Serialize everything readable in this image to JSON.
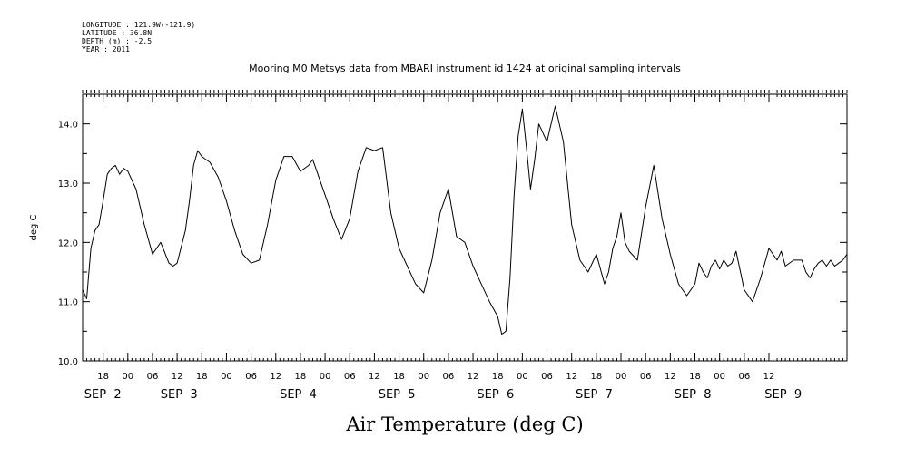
{
  "header": {
    "longitude": "LONGITUDE : 121.9W(-121.9)",
    "latitude": "LATITUDE : 36.8N",
    "depth": "DEPTH (m) : -2.5",
    "year": "YEAR : 2011"
  },
  "chart_data": {
    "type": "line",
    "title": "Mooring M0 Metsys data from MBARI instrument id 1424 at original sampling intervals",
    "xlabel": "Air Temperature (deg C)",
    "ylabel": "deg C",
    "ylim": [
      10.0,
      14.5
    ],
    "xlim_hours": [
      13,
      199
    ],
    "y_ticks": [
      "10.0",
      "11.0",
      "12.0",
      "13.0",
      "14.0"
    ],
    "x_ticks": [
      "18",
      "00",
      "06",
      "12",
      "18",
      "00",
      "06",
      "12",
      "18",
      "00",
      "06",
      "12",
      "18",
      "00",
      "06",
      "12",
      "18",
      "00",
      "06",
      "12",
      "18",
      "00",
      "06",
      "12",
      "18",
      "00",
      "06",
      "12"
    ],
    "date_labels": [
      "SEP  2",
      "SEP  3",
      "SEP  4",
      "SEP  5",
      "SEP  6",
      "SEP  7",
      "SEP  8",
      "SEP  9"
    ],
    "grid": false,
    "series": [
      {
        "name": "",
        "x_hours_since_sep1": [
          13,
          14,
          15,
          16,
          17,
          18,
          19,
          20,
          21,
          22,
          23,
          24,
          26,
          28,
          30,
          32,
          34,
          35,
          36,
          38,
          39,
          40,
          41,
          42,
          44,
          46,
          48,
          50,
          52,
          54,
          56,
          58,
          60,
          62,
          64,
          66,
          68,
          69,
          70,
          72,
          74,
          76,
          78,
          80,
          82,
          84,
          86,
          88,
          90,
          92,
          94,
          96,
          98,
          100,
          102,
          104,
          106,
          108,
          110,
          112,
          114,
          115,
          116,
          117,
          118,
          119,
          120,
          121,
          122,
          123,
          124,
          126,
          128,
          130,
          132,
          134,
          136,
          138,
          140,
          141,
          142,
          143,
          144,
          145,
          146,
          148,
          150,
          152,
          154,
          156,
          158,
          160,
          162,
          163,
          164,
          165,
          166,
          167,
          168,
          169,
          170,
          171,
          172,
          174,
          176,
          178,
          180,
          182,
          183,
          184,
          186,
          188,
          189,
          190,
          191,
          192,
          193,
          194,
          195,
          196,
          197,
          198,
          199
        ],
        "values": [
          11.2,
          11.05,
          11.9,
          12.2,
          12.3,
          12.7,
          13.15,
          13.25,
          13.3,
          13.15,
          13.25,
          13.2,
          12.9,
          12.3,
          11.8,
          12.0,
          11.65,
          11.6,
          11.65,
          12.2,
          12.7,
          13.3,
          13.55,
          13.45,
          13.35,
          13.1,
          12.7,
          12.2,
          11.8,
          11.65,
          11.7,
          12.3,
          13.05,
          13.45,
          13.45,
          13.2,
          13.3,
          13.4,
          13.2,
          12.8,
          12.4,
          12.05,
          12.4,
          13.2,
          13.6,
          13.55,
          13.6,
          12.5,
          11.9,
          11.6,
          11.3,
          11.15,
          11.7,
          12.5,
          12.9,
          12.1,
          12.0,
          11.6,
          11.3,
          11.0,
          10.75,
          10.45,
          10.5,
          11.4,
          12.8,
          13.8,
          14.25,
          13.6,
          12.9,
          13.4,
          14.0,
          13.7,
          14.3,
          13.7,
          12.3,
          11.7,
          11.5,
          11.8,
          11.3,
          11.5,
          11.9,
          12.1,
          12.5,
          12.0,
          11.85,
          11.7,
          12.6,
          13.3,
          12.4,
          11.8,
          11.3,
          11.1,
          11.3,
          11.65,
          11.5,
          11.4,
          11.6,
          11.7,
          11.55,
          11.7,
          11.6,
          11.65,
          11.85,
          11.2,
          11.0,
          11.4,
          11.9,
          11.7,
          11.85,
          11.6,
          11.7,
          11.7,
          11.5,
          11.4,
          11.55,
          11.65,
          11.7,
          11.6,
          11.7,
          11.6,
          11.65,
          11.7,
          11.8
        ]
      }
    ]
  }
}
